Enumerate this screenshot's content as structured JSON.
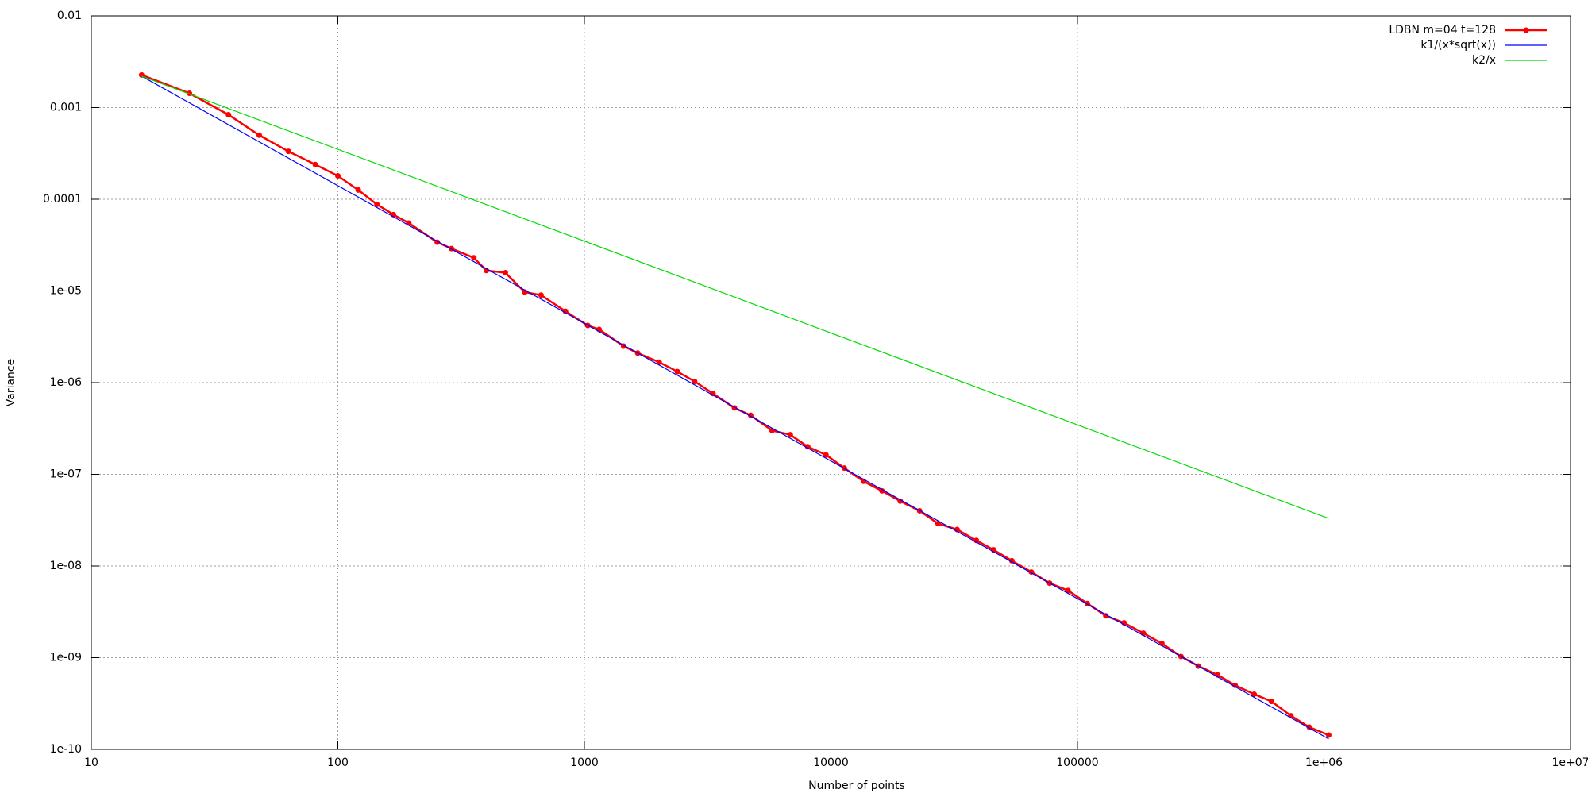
{
  "chart_data": {
    "type": "line",
    "x_label": "Number of points",
    "y_label": "Variance",
    "xscale": "log",
    "yscale": "log",
    "grid": true,
    "legend": "top-right",
    "xlim": [
      10,
      10000000
    ],
    "ylim": [
      1e-10,
      0.01
    ],
    "xticks": [
      10,
      100,
      1000,
      10000,
      100000,
      {
        "value": 1000000,
        "label": "1e+06"
      },
      {
        "value": 10000000,
        "label": "1e+07"
      }
    ],
    "yticks": [
      {
        "value": 1e-10,
        "label": "1e-10"
      },
      {
        "value": 1e-09,
        "label": "1e-09"
      },
      {
        "value": 1e-08,
        "label": "1e-08"
      },
      {
        "value": 1e-07,
        "label": "1e-07"
      },
      {
        "value": 1e-06,
        "label": "1e-06"
      },
      {
        "value": 1e-05,
        "label": "1e-05"
      },
      0.0001,
      0.001,
      0.01
    ],
    "series": [
      {
        "name": "LDBN m=04 t=128",
        "color": "#ff0000",
        "markers": true,
        "x": [
          16,
          25,
          36,
          48,
          63,
          81,
          100,
          121,
          144,
          168,
          194,
          253,
          289,
          356,
          400,
          478,
          573,
          667,
          838,
          1032,
          1148,
          1443,
          1645,
          2010,
          2384,
          2800,
          3323,
          4060,
          4725,
          5770,
          6840,
          8050,
          9550,
          11330,
          13560,
          16100,
          19100,
          22900,
          27200,
          32500,
          38900,
          45700,
          54200,
          65000,
          77100,
          91600,
          109700,
          130300,
          154500,
          185000,
          220000,
          263000,
          309000,
          370000,
          436000,
          521000,
          613000,
          734000,
          871000,
          1045000
        ],
        "values": [
          0.00227,
          0.00143,
          0.000836,
          0.0005,
          0.000333,
          0.000239,
          0.00018,
          0.000126,
          8.8e-05,
          6.8e-05,
          5.5e-05,
          3.4e-05,
          2.9e-05,
          2.3e-05,
          1.67e-05,
          1.58e-05,
          9.7e-06,
          9e-06,
          6e-06,
          4.2e-06,
          3.8e-06,
          2.5e-06,
          2.1e-06,
          1.67e-06,
          1.32e-06,
          1.03e-06,
          7.6e-07,
          5.3e-07,
          4.4e-07,
          3e-07,
          2.7e-07,
          2e-07,
          1.63e-07,
          1.17e-07,
          8.4e-08,
          6.6e-08,
          5.1e-08,
          4e-08,
          2.9e-08,
          2.5e-08,
          1.9e-08,
          1.5e-08,
          1.14e-08,
          8.6e-09,
          6.5e-09,
          5.4e-09,
          3.9e-09,
          2.86e-09,
          2.4e-09,
          1.85e-09,
          1.43e-09,
          1.03e-09,
          8.1e-10,
          6.5e-10,
          5e-10,
          4e-10,
          3.33e-10,
          2.33e-10,
          1.75e-10,
          1.43e-10
        ]
      },
      {
        "name": "k1/(x*sqrt(x))",
        "color": "#0000ff",
        "markers": false,
        "x": [
          16,
          1045000
        ],
        "values": [
          0.0022,
          1.3e-10
        ]
      },
      {
        "name": "k2/x",
        "color": "#00dd00",
        "markers": false,
        "x": [
          16,
          1045000
        ],
        "values": [
          0.0022,
          3.3e-08
        ]
      }
    ]
  }
}
